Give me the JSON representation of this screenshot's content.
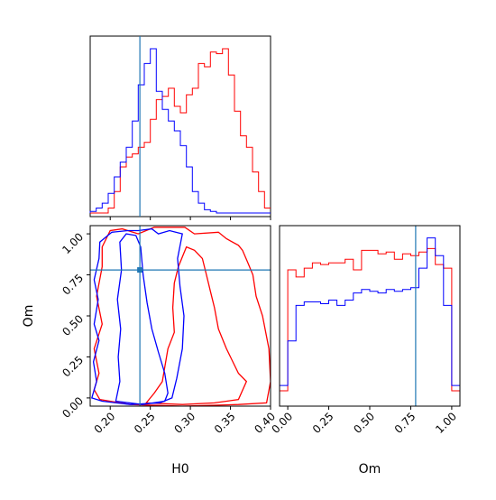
{
  "chart_data": {
    "type": "corner",
    "parameters": [
      "H0",
      "Om"
    ],
    "truths": {
      "H0": 0.237,
      "Om": 0.78
    },
    "colors": {
      "series_a": "#0000ff",
      "series_b": "#ff0000",
      "truth": "#1f77b4"
    },
    "axes": {
      "H0": {
        "label": "H0",
        "range": [
          0.175,
          0.4
        ],
        "ticks": [
          "0.20",
          "0.25",
          "0.30",
          "0.35",
          "0.40"
        ],
        "tick_values": [
          0.2,
          0.25,
          0.3,
          0.35,
          0.4
        ]
      },
      "Om": {
        "label": "Om",
        "range": [
          -0.05,
          1.05
        ],
        "ticks": [
          "0.00",
          "0.25",
          "0.50",
          "0.75",
          "1.00"
        ],
        "tick_values": [
          0.0,
          0.25,
          0.5,
          0.75,
          1.0
        ]
      }
    },
    "histograms": {
      "H0": {
        "edges": [
          0.175,
          0.1825,
          0.19,
          0.1975,
          0.205,
          0.2125,
          0.22,
          0.2275,
          0.235,
          0.2425,
          0.25,
          0.2575,
          0.265,
          0.2725,
          0.28,
          0.2875,
          0.295,
          0.3025,
          0.31,
          0.3175,
          0.325,
          0.3325,
          0.34,
          0.3475,
          0.355,
          0.3625,
          0.37,
          0.3775,
          0.385,
          0.3925,
          0.4
        ],
        "series_a": [
          0.01,
          0.03,
          0.06,
          0.12,
          0.22,
          0.31,
          0.4,
          0.56,
          0.78,
          0.91,
          1.0,
          0.74,
          0.63,
          0.56,
          0.5,
          0.41,
          0.28,
          0.13,
          0.06,
          0.02,
          0.01,
          0,
          0,
          0,
          0,
          0,
          0,
          0,
          0,
          0
        ],
        "series_b": [
          0,
          0,
          0,
          0.03,
          0.13,
          0.28,
          0.34,
          0.36,
          0.4,
          0.43,
          0.57,
          0.69,
          0.71,
          0.76,
          0.65,
          0.61,
          0.72,
          0.76,
          0.91,
          0.89,
          0.98,
          0.97,
          1.0,
          0.84,
          0.62,
          0.47,
          0.4,
          0.25,
          0.13,
          0.03
        ]
      },
      "Om": {
        "edges": [
          -0.05,
          0.0,
          0.05,
          0.1,
          0.15,
          0.2,
          0.25,
          0.3,
          0.35,
          0.4,
          0.45,
          0.5,
          0.55,
          0.6,
          0.65,
          0.7,
          0.75,
          0.8,
          0.85,
          0.9,
          0.95,
          1.0,
          1.05
        ],
        "series_a": [
          0.03,
          0.28,
          0.48,
          0.5,
          0.5,
          0.49,
          0.51,
          0.48,
          0.51,
          0.55,
          0.57,
          0.56,
          0.55,
          0.57,
          0.56,
          0.57,
          0.58,
          0.69,
          0.86,
          0.76,
          0.48,
          0.03
        ],
        "series_b": [
          0,
          0.68,
          0.64,
          0.69,
          0.72,
          0.71,
          0.72,
          0.72,
          0.74,
          0.68,
          0.79,
          0.79,
          0.77,
          0.78,
          0.74,
          0.77,
          0.76,
          0.78,
          0.8,
          0.71,
          0.69,
          0
        ]
      }
    },
    "contours_2d": {
      "x_param": "H0",
      "y_param": "Om",
      "series_a": [
        [
          [
            0.207,
            -0.02
          ],
          [
            0.212,
            0.1
          ],
          [
            0.21,
            0.25
          ],
          [
            0.213,
            0.42
          ],
          [
            0.209,
            0.6
          ],
          [
            0.214,
            0.78
          ],
          [
            0.212,
            0.95
          ],
          [
            0.22,
            1.0
          ],
          [
            0.232,
            0.99
          ],
          [
            0.238,
            0.92
          ],
          [
            0.241,
            0.75
          ],
          [
            0.246,
            0.58
          ],
          [
            0.252,
            0.42
          ],
          [
            0.26,
            0.28
          ],
          [
            0.268,
            0.15
          ],
          [
            0.272,
            0.03
          ],
          [
            0.268,
            -0.02
          ],
          [
            0.24,
            -0.04
          ],
          [
            0.207,
            -0.02
          ]
        ],
        [
          [
            0.177,
            0.0
          ],
          [
            0.19,
            -0.02
          ],
          [
            0.225,
            -0.04
          ],
          [
            0.262,
            -0.03
          ],
          [
            0.277,
            0.0
          ],
          [
            0.283,
            0.12
          ],
          [
            0.29,
            0.3
          ],
          [
            0.292,
            0.5
          ],
          [
            0.287,
            0.68
          ],
          [
            0.284,
            0.85
          ],
          [
            0.29,
            1.0
          ],
          [
            0.274,
            1.02
          ],
          [
            0.26,
            1.0
          ],
          [
            0.252,
            1.03
          ],
          [
            0.235,
            1.02
          ],
          [
            0.222,
            1.02
          ],
          [
            0.202,
            1.01
          ],
          [
            0.187,
            0.95
          ],
          [
            0.186,
            0.85
          ],
          [
            0.18,
            0.72
          ],
          [
            0.185,
            0.6
          ],
          [
            0.18,
            0.45
          ],
          [
            0.186,
            0.35
          ],
          [
            0.179,
            0.22
          ],
          [
            0.183,
            0.1
          ],
          [
            0.177,
            0.0
          ]
        ]
      ],
      "series_b": [
        [
          [
            0.245,
            -0.03
          ],
          [
            0.29,
            -0.04
          ],
          [
            0.33,
            -0.03
          ],
          [
            0.36,
            -0.01
          ],
          [
            0.37,
            0.1
          ],
          [
            0.36,
            0.15
          ],
          [
            0.345,
            0.3
          ],
          [
            0.335,
            0.42
          ],
          [
            0.33,
            0.55
          ],
          [
            0.325,
            0.65
          ],
          [
            0.32,
            0.75
          ],
          [
            0.315,
            0.85
          ],
          [
            0.305,
            0.9
          ],
          [
            0.295,
            0.92
          ],
          [
            0.285,
            0.8
          ],
          [
            0.28,
            0.7
          ],
          [
            0.278,
            0.55
          ],
          [
            0.28,
            0.4
          ],
          [
            0.272,
            0.3
          ],
          [
            0.265,
            0.1
          ],
          [
            0.255,
            0.03
          ],
          [
            0.245,
            -0.03
          ]
        ],
        [
          [
            0.18,
            0.05
          ],
          [
            0.187,
            -0.01
          ],
          [
            0.225,
            -0.04
          ],
          [
            0.29,
            -0.05
          ],
          [
            0.36,
            -0.04
          ],
          [
            0.395,
            -0.03
          ],
          [
            0.4,
            0.1
          ],
          [
            0.398,
            0.3
          ],
          [
            0.39,
            0.5
          ],
          [
            0.382,
            0.62
          ],
          [
            0.378,
            0.75
          ],
          [
            0.372,
            0.82
          ],
          [
            0.365,
            0.9
          ],
          [
            0.36,
            0.93
          ],
          [
            0.345,
            0.97
          ],
          [
            0.335,
            1.01
          ],
          [
            0.305,
            1.0
          ],
          [
            0.293,
            1.04
          ],
          [
            0.255,
            1.04
          ],
          [
            0.235,
            1.0
          ],
          [
            0.215,
            1.03
          ],
          [
            0.2,
            1.02
          ],
          [
            0.19,
            0.92
          ],
          [
            0.19,
            0.8
          ],
          [
            0.183,
            0.62
          ],
          [
            0.19,
            0.45
          ],
          [
            0.18,
            0.3
          ],
          [
            0.186,
            0.15
          ],
          [
            0.18,
            0.05
          ]
        ]
      ]
    }
  }
}
